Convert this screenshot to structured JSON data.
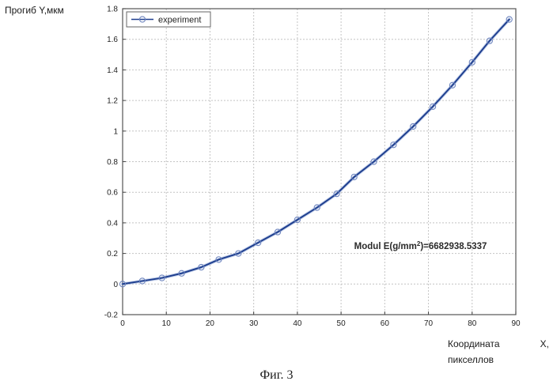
{
  "figure": {
    "caption": "Фиг. 3"
  },
  "chart_data": {
    "type": "line",
    "title": "",
    "ylabel": "Прогиб Y,мкм",
    "xlabel_part1": "Координата",
    "xlabel_part2": "X,",
    "xlabel_part3": "пикселлов",
    "xlim": [
      0,
      90
    ],
    "ylim": [
      -0.2,
      1.8
    ],
    "xticks": [
      0,
      10,
      20,
      30,
      40,
      50,
      60,
      70,
      80,
      90
    ],
    "yticks": [
      -0.2,
      0,
      0.2,
      0.4,
      0.6,
      0.8,
      1,
      1.2,
      1.4,
      1.6,
      1.8
    ],
    "ytick_labels": [
      "-0.2",
      "0",
      "0.2",
      "0.4",
      "0.6",
      "0.8",
      "1",
      "1.2",
      "1.4",
      "1.6",
      "1.8"
    ],
    "grid": true,
    "legend_position": "top-left",
    "annotation": {
      "prefix": "Modul E(g/mm",
      "superscript": "2",
      "suffix": ")=6682938.5337",
      "x": 53,
      "y": 0.25
    },
    "series": [
      {
        "name": "experiment",
        "color": "#1f3f8f",
        "marker": "circle",
        "x": [
          0,
          4.5,
          9,
          13.5,
          18,
          22,
          26.5,
          31,
          35.5,
          40,
          44.5,
          49,
          53,
          57.5,
          62,
          66.5,
          71,
          75.5,
          80,
          84,
          88.5
        ],
        "y": [
          0.0,
          0.02,
          0.04,
          0.07,
          0.11,
          0.16,
          0.2,
          0.27,
          0.34,
          0.42,
          0.5,
          0.59,
          0.7,
          0.8,
          0.91,
          1.03,
          1.16,
          1.3,
          1.45,
          1.59,
          1.73
        ]
      }
    ]
  }
}
